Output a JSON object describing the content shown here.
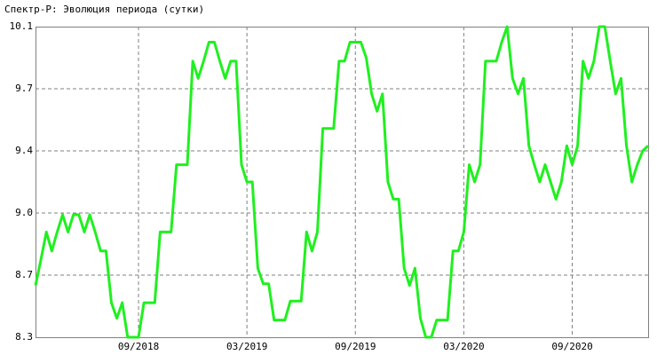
{
  "chart_data": {
    "type": "line",
    "title": "Спектр-Р: Эволюция периода (сутки)",
    "categories": [
      null,
      null,
      null,
      null,
      null,
      null,
      null,
      null,
      null,
      null,
      null,
      null,
      null,
      null,
      null,
      null,
      null,
      null,
      null,
      "09/2018",
      null,
      null,
      null,
      null,
      null,
      null,
      null,
      null,
      null,
      null,
      null,
      null,
      null,
      null,
      null,
      null,
      null,
      null,
      null,
      "03/2019",
      null,
      null,
      null,
      null,
      null,
      null,
      null,
      null,
      null,
      null,
      null,
      null,
      null,
      null,
      null,
      null,
      null,
      null,
      null,
      "09/2019",
      null,
      null,
      null,
      null,
      null,
      null,
      null,
      null,
      null,
      null,
      null,
      null,
      null,
      null,
      null,
      null,
      null,
      null,
      null,
      "03/2020",
      null,
      null,
      null,
      null,
      null,
      null,
      null,
      null,
      null,
      null,
      null,
      null,
      null,
      null,
      null,
      null,
      null,
      null,
      null,
      "09/2020",
      null,
      null,
      null,
      null,
      null,
      null,
      null,
      null,
      null,
      null,
      null,
      null,
      null,
      null
    ],
    "values": [
      8.6,
      8.75,
      8.91,
      8.8,
      8.91,
      9.01,
      8.91,
      9.01,
      9.01,
      8.91,
      9.01,
      8.91,
      8.8,
      8.8,
      8.5,
      8.41,
      8.5,
      8.3,
      8.3,
      8.3,
      8.5,
      8.5,
      8.5,
      8.91,
      8.91,
      8.91,
      9.3,
      9.3,
      9.3,
      9.9,
      9.8,
      9.9,
      10.01,
      10.01,
      9.9,
      9.8,
      9.9,
      9.9,
      9.3,
      9.2,
      9.2,
      8.7,
      8.61,
      8.61,
      8.4,
      8.4,
      8.4,
      8.51,
      8.51,
      8.51,
      8.91,
      8.8,
      8.91,
      9.51,
      9.51,
      9.51,
      9.9,
      9.9,
      10.01,
      10.01,
      10.01,
      9.92,
      9.71,
      9.61,
      9.71,
      9.2,
      9.1,
      9.1,
      8.7,
      8.6,
      8.7,
      8.41,
      8.3,
      8.3,
      8.4,
      8.4,
      8.4,
      8.8,
      8.8,
      8.91,
      9.3,
      9.2,
      9.3,
      9.9,
      9.9,
      9.9,
      10.01,
      10.1,
      9.8,
      9.71,
      9.8,
      9.41,
      9.3,
      9.2,
      9.3,
      9.2,
      9.1,
      9.2,
      9.41,
      9.3,
      9.41,
      9.9,
      9.8,
      9.9,
      10.1,
      10.1,
      9.9,
      9.71,
      9.8,
      9.41,
      9.2,
      9.3,
      9.38,
      9.41
    ],
    "color": "#1ff01f",
    "ylim": [
      8.3,
      10.1
    ],
    "yticks": [
      {
        "value": 8.3,
        "label": "8.3"
      },
      {
        "value": 8.66,
        "label": "8.7"
      },
      {
        "value": 9.02,
        "label": "9.0"
      },
      {
        "value": 9.38,
        "label": "9.4"
      },
      {
        "value": 9.74,
        "label": "9.7"
      },
      {
        "value": 10.1,
        "label": "10.1"
      }
    ],
    "grid": true
  }
}
